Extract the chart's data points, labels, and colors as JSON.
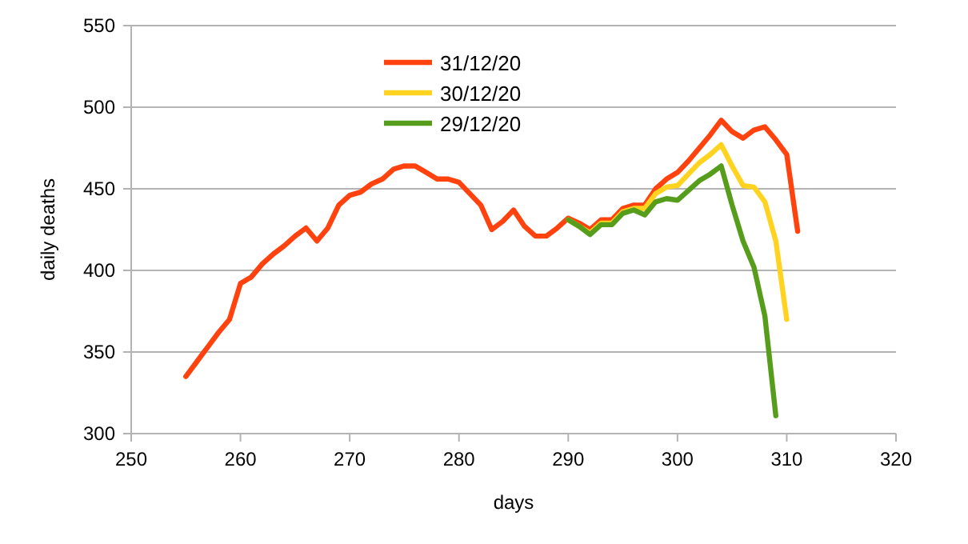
{
  "chart_data": {
    "type": "line",
    "xlabel": "days",
    "ylabel": "daily deaths",
    "xlim": [
      250,
      320
    ],
    "xticks": [
      250,
      260,
      270,
      280,
      290,
      300,
      310,
      320
    ],
    "ylim": [
      300,
      550
    ],
    "yticks": [
      300,
      350,
      400,
      450,
      500,
      550
    ],
    "grid": "y",
    "legend": "top",
    "marker": "none",
    "line_style": "solid",
    "series": [
      {
        "name": "31/12/20",
        "color": "#ff420e",
        "x": [
          255,
          256,
          257,
          258,
          259,
          260,
          261,
          262,
          263,
          264,
          265,
          266,
          267,
          268,
          269,
          270,
          271,
          272,
          273,
          274,
          275,
          276,
          277,
          278,
          279,
          280,
          281,
          282,
          283,
          284,
          285,
          286,
          287,
          288,
          289,
          290,
          291,
          292,
          293,
          294,
          295,
          296,
          297,
          298,
          299,
          300,
          301,
          302,
          303,
          304,
          305,
          306,
          307,
          308,
          309,
          310,
          311
        ],
        "values": [
          335,
          344,
          353,
          362,
          370,
          392,
          396,
          404,
          410,
          415,
          421,
          426,
          418,
          426,
          440,
          446,
          448,
          453,
          456,
          462,
          464,
          464,
          460,
          456,
          456,
          454,
          447,
          440,
          425,
          430,
          437,
          427,
          421,
          421,
          426,
          432,
          429,
          425,
          431,
          431,
          438,
          440,
          440,
          450,
          456,
          460,
          467,
          475,
          483,
          492,
          485,
          481,
          486,
          488,
          480,
          471,
          424
        ]
      },
      {
        "name": "30/12/20",
        "color": "#ffd320",
        "x": [
          290,
          291,
          292,
          293,
          294,
          295,
          296,
          297,
          298,
          299,
          300,
          301,
          302,
          303,
          304,
          305,
          306,
          307,
          308,
          309,
          310
        ],
        "values": [
          431,
          427,
          423,
          429,
          429,
          436,
          438,
          438,
          447,
          451,
          452,
          459,
          466,
          471,
          477,
          464,
          452,
          451,
          442,
          418,
          370
        ]
      },
      {
        "name": "29/12/20",
        "color": "#579d1c",
        "x": [
          290,
          291,
          292,
          293,
          294,
          295,
          296,
          297,
          298,
          299,
          300,
          301,
          302,
          303,
          304,
          305,
          306,
          307,
          308,
          309
        ],
        "values": [
          431,
          427,
          422,
          428,
          428,
          435,
          437,
          434,
          442,
          444,
          443,
          449,
          455,
          459,
          464,
          440,
          418,
          402,
          372,
          311
        ]
      }
    ]
  }
}
